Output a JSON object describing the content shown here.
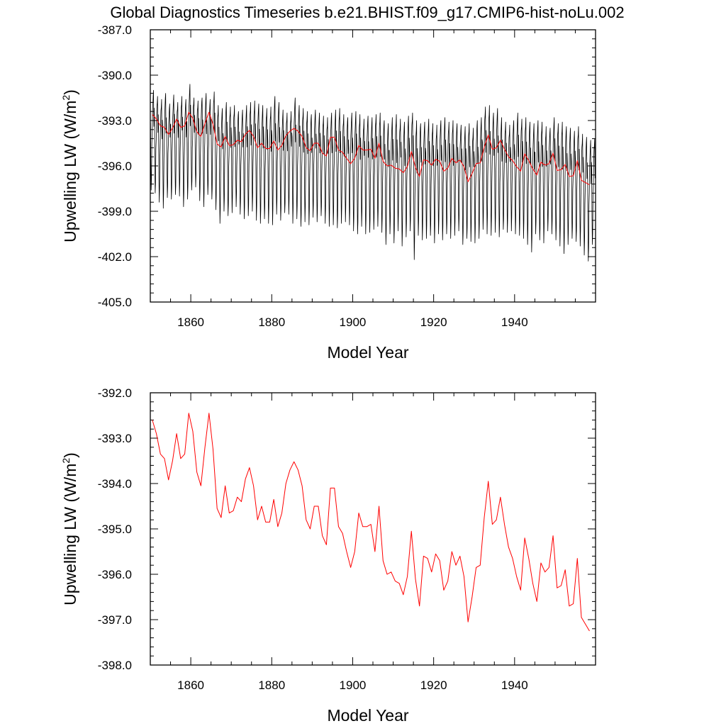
{
  "title": "Global Diagnostics Timeseries b.e21.BHIST.f09_g17.CMIP6-hist-noLu.002",
  "colors": {
    "monthly": "#000000",
    "annual": "#ff0000",
    "axis": "#000000"
  },
  "chart_data": [
    {
      "type": "line",
      "xlabel": "Model Year",
      "ylabel_main": "Upwelling LW (W/m",
      "ylabel_sup": "2",
      "ylabel_end": ")",
      "xlim": [
        1850,
        1960
      ],
      "ylim": [
        -405.0,
        -387.0
      ],
      "xticks": [
        1860,
        1880,
        1900,
        1920,
        1940
      ],
      "xtick_labels": [
        "1860",
        "1880",
        "1900",
        "1920",
        "1940"
      ],
      "yticks": [
        -387.0,
        -390.0,
        -393.0,
        -396.0,
        -399.0,
        -402.0,
        -405.0
      ],
      "ytick_labels": [
        "-387.0",
        "-390.0",
        "-393.0",
        "-396.0",
        "-399.0",
        "-402.0",
        "-405.0"
      ],
      "series": [
        {
          "kind": "monthly",
          "envelope_max": [
            -391.0,
            -391.4,
            -391.6,
            -391.2,
            -391.9,
            -391.3,
            -391.8,
            -391.4,
            -391.6,
            -390.6,
            -391.5,
            -391.7,
            -391.5,
            -391.2,
            -391.6,
            -391.1,
            -392.0,
            -392.2,
            -391.8,
            -392.1,
            -392.0,
            -392.4,
            -392.3,
            -392.0,
            -391.8,
            -391.7,
            -391.9,
            -392.0,
            -392.2,
            -392.1,
            -391.4,
            -391.8,
            -392.3,
            -392.5,
            -392.4,
            -391.5,
            -392.0,
            -392.2,
            -392.4,
            -392.6,
            -392.3,
            -392.5,
            -392.7,
            -392.8,
            -392.5,
            -392.3,
            -392.2,
            -392.6,
            -392.8,
            -392.5,
            -392.4,
            -392.6,
            -392.9,
            -392.7,
            -392.8,
            -392.6,
            -392.5,
            -393.0,
            -393.2,
            -392.8,
            -392.6,
            -392.9,
            -393.1,
            -392.7,
            -392.5,
            -393.0,
            -393.2,
            -393.1,
            -392.9,
            -393.2,
            -393.3,
            -393.0,
            -392.8,
            -393.1,
            -393.0,
            -393.2,
            -393.3,
            -393.4,
            -393.2,
            -393.5,
            -393.0,
            -392.8,
            -392.1,
            -392.0,
            -392.5,
            -392.2,
            -392.8,
            -393.1,
            -393.3,
            -393.0,
            -392.5,
            -392.9,
            -392.8,
            -393.1,
            -393.2,
            -393.0,
            -393.1,
            -393.4,
            -393.5,
            -392.8,
            -393.2,
            -393.1,
            -393.4,
            -393.5,
            -393.7,
            -393.4,
            -393.9,
            -394.1,
            -394.3,
            -394.2
          ],
          "envelope_min": [
            -397.6,
            -397.8,
            -398.4,
            -398.8,
            -398.1,
            -398.2,
            -397.9,
            -398.0,
            -398.7,
            -398.2,
            -397.6,
            -397.4,
            -398.3,
            -398.7,
            -397.9,
            -398.2,
            -398.9,
            -399.8,
            -399.0,
            -399.3,
            -399.1,
            -398.7,
            -399.2,
            -399.5,
            -399.3,
            -399.0,
            -399.6,
            -399.8,
            -399.5,
            -399.8,
            -399.9,
            -399.2,
            -399.6,
            -399.1,
            -399.2,
            -399.8,
            -399.5,
            -400.0,
            -399.7,
            -399.9,
            -399.4,
            -399.7,
            -399.3,
            -399.8,
            -400.0,
            -399.9,
            -400.1,
            -399.8,
            -399.7,
            -399.9,
            -400.3,
            -400.5,
            -400.0,
            -400.5,
            -400.4,
            -400.2,
            -400.0,
            -400.4,
            -401.2,
            -400.5,
            -401.1,
            -400.3,
            -401.3,
            -400.7,
            -400.3,
            -402.2,
            -400.6,
            -400.9,
            -400.8,
            -400.6,
            -401.1,
            -400.5,
            -400.9,
            -400.5,
            -400.8,
            -400.6,
            -400.3,
            -401.2,
            -400.8,
            -401.0,
            -401.1,
            -400.8,
            -400.2,
            -400.5,
            -400.6,
            -400.4,
            -400.7,
            -400.2,
            -400.4,
            -400.3,
            -400.5,
            -400.6,
            -400.8,
            -401.2,
            -401.7,
            -400.5,
            -400.9,
            -401.1,
            -400.3,
            -400.5,
            -400.9,
            -401.3,
            -401.8,
            -401.2,
            -400.8,
            -401.0,
            -401.3,
            -401.9,
            -402.3,
            -401.2
          ]
        },
        {
          "kind": "annual"
        }
      ]
    },
    {
      "type": "line",
      "xlabel": "Model Year",
      "ylabel_main": "Upwelling LW (W/m",
      "ylabel_sup": "2",
      "ylabel_end": ")",
      "xlim": [
        1850,
        1960
      ],
      "ylim": [
        -398.0,
        -392.0
      ],
      "xticks": [
        1860,
        1880,
        1900,
        1920,
        1940
      ],
      "xtick_labels": [
        "1860",
        "1880",
        "1900",
        "1920",
        "1940"
      ],
      "yticks": [
        -392.0,
        -393.0,
        -394.0,
        -395.0,
        -396.0,
        -397.0,
        -398.0
      ],
      "ytick_labels": [
        "-392.0",
        "-393.0",
        "-394.0",
        "-395.0",
        "-396.0",
        "-397.0",
        "-398.0"
      ],
      "series": [
        {
          "kind": "annual",
          "x_start": 1850.5,
          "x_step": 1,
          "values": [
            -392.6,
            -392.9,
            -393.35,
            -393.45,
            -393.92,
            -393.5,
            -392.9,
            -393.45,
            -393.35,
            -392.45,
            -392.85,
            -393.75,
            -394.05,
            -393.2,
            -392.45,
            -393.25,
            -394.55,
            -394.75,
            -394.05,
            -394.65,
            -394.6,
            -394.3,
            -394.4,
            -393.9,
            -393.65,
            -394.05,
            -394.8,
            -394.5,
            -394.85,
            -394.85,
            -394.35,
            -394.95,
            -394.65,
            -394.0,
            -393.7,
            -393.52,
            -393.7,
            -394.05,
            -394.8,
            -395.0,
            -394.5,
            -394.5,
            -395.15,
            -395.35,
            -394.1,
            -394.1,
            -394.95,
            -395.1,
            -395.5,
            -395.85,
            -395.5,
            -394.65,
            -394.95,
            -394.95,
            -394.9,
            -395.5,
            -394.5,
            -395.7,
            -396.0,
            -395.95,
            -396.15,
            -396.2,
            -396.45,
            -396.05,
            -395.05,
            -396.1,
            -396.7,
            -395.6,
            -395.65,
            -395.95,
            -395.55,
            -395.7,
            -396.35,
            -396.15,
            -395.5,
            -395.8,
            -395.6,
            -396.05,
            -397.05,
            -396.5,
            -395.85,
            -395.8,
            -394.75,
            -393.95,
            -394.9,
            -394.8,
            -394.3,
            -394.9,
            -395.4,
            -395.65,
            -396.05,
            -396.35,
            -395.2,
            -395.65,
            -396.2,
            -396.6,
            -395.75,
            -395.95,
            -395.85,
            -395.15,
            -396.3,
            -396.25,
            -395.9,
            -396.7,
            -396.65,
            -395.65,
            -396.95,
            -397.1,
            -397.25
          ]
        }
      ]
    }
  ]
}
